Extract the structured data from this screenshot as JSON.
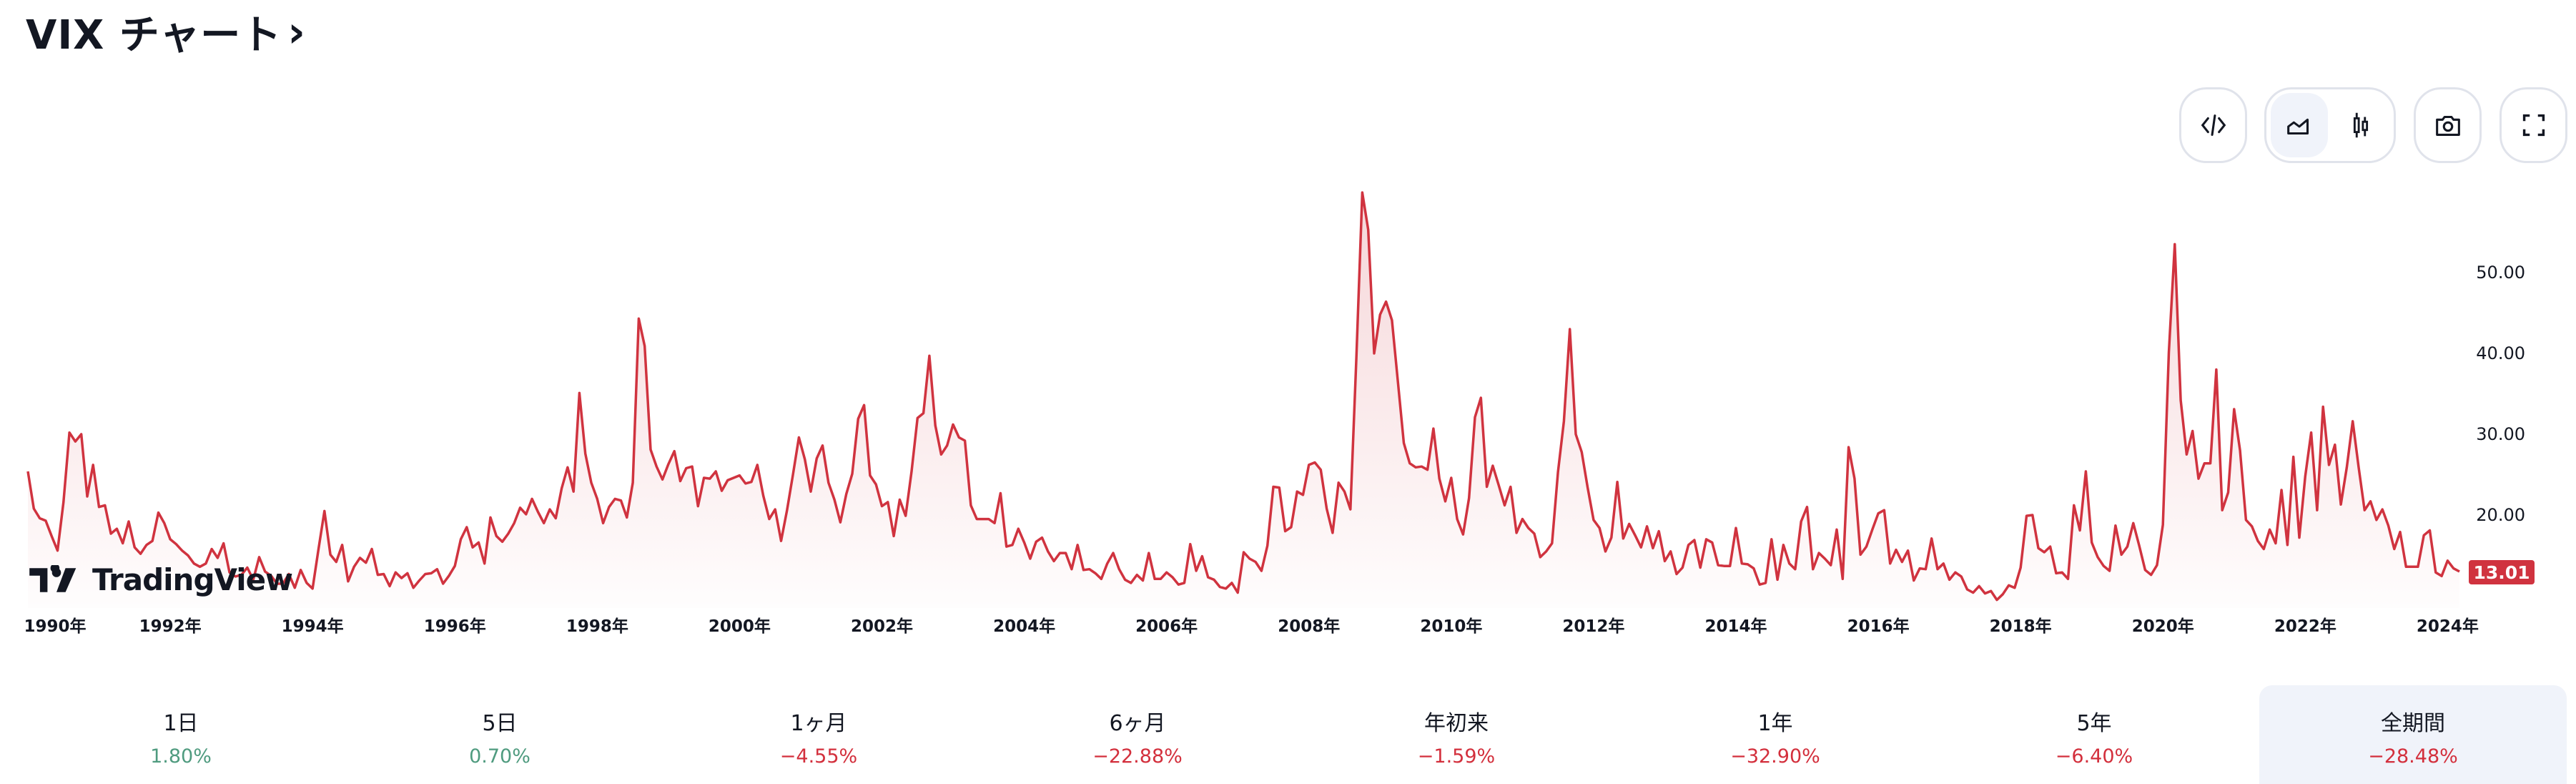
{
  "header": {
    "title": "VIX チャート",
    "chevron": "›"
  },
  "toolbar": {
    "embed_icon": "code-icon",
    "chart_types": [
      {
        "icon": "area-chart-icon",
        "selected": true
      },
      {
        "icon": "candlestick-icon",
        "selected": false
      }
    ],
    "snapshot_icon": "camera-icon",
    "fullscreen_icon": "fullscreen-icon"
  },
  "branding": {
    "logo_text": "TradingView"
  },
  "colors": {
    "line": "#d0333f",
    "positive": "#4f9b7f",
    "negative": "#d32f3c",
    "selected_bg": "#f0f3fa"
  },
  "chart_data": {
    "type": "area",
    "frequency": "monthly",
    "series": [
      {
        "data": [
          {
            "year": 1990,
            "values": [
              25.4,
              20.8,
              19.6,
              19.3,
              17.4,
              15.6,
              21.6,
              30.2,
              29.1,
              30.0,
              22.3,
              26.2
            ]
          },
          {
            "year": 1991,
            "values": [
              21.0,
              21.2,
              17.7,
              18.3,
              16.5,
              19.2,
              16.0,
              15.2,
              16.3,
              16.8,
              20.3,
              19.0
            ]
          },
          {
            "year": 1992,
            "values": [
              17.0,
              16.4,
              15.6,
              15.0,
              14.0,
              13.6,
              14.0,
              15.8,
              14.7,
              16.5,
              12.9,
              12.4
            ]
          },
          {
            "year": 1993,
            "values": [
              12.6,
              13.5,
              12.0,
              14.8,
              13.0,
              12.5,
              11.5,
              11.5,
              12.7,
              11.0,
              13.2,
              11.6
            ]
          },
          {
            "year": 1994,
            "values": [
              10.9,
              15.8,
              20.5,
              15.1,
              14.2,
              16.3,
              11.8,
              13.6,
              14.7,
              14.1,
              15.8,
              12.6
            ]
          },
          {
            "year": 1995,
            "values": [
              12.7,
              11.2,
              12.9,
              12.2,
              12.8,
              11.0,
              11.9,
              12.7,
              12.8,
              13.3,
              11.5,
              12.5
            ]
          },
          {
            "year": 1996,
            "values": [
              13.7,
              17.0,
              18.5,
              16.0,
              16.6,
              14.0,
              19.7,
              17.4,
              16.7,
              17.7,
              19.0,
              20.9
            ]
          },
          {
            "year": 1997,
            "values": [
              20.1,
              22.0,
              20.4,
              19.0,
              20.7,
              19.6,
              23.3,
              25.9,
              22.9,
              35.1,
              27.6,
              24.0
            ]
          },
          {
            "year": 1998,
            "values": [
              22.0,
              19.0,
              21.0,
              22.0,
              21.8,
              19.7,
              24.0,
              44.3,
              40.9,
              28.1,
              26.0,
              24.4
            ]
          },
          {
            "year": 1999,
            "values": [
              26.3,
              27.9,
              24.2,
              25.8,
              26.0,
              21.1,
              24.6,
              24.5,
              25.4,
              23.0,
              24.3,
              24.6
            ]
          },
          {
            "year": 2000,
            "values": [
              24.9,
              23.9,
              24.1,
              26.2,
              22.4,
              19.5,
              20.7,
              16.8,
              20.6,
              25.0,
              29.6,
              26.9
            ]
          },
          {
            "year": 2001,
            "values": [
              22.9,
              27.0,
              28.6,
              24.0,
              21.9,
              19.1,
              22.6,
              25.1,
              31.9,
              33.6,
              24.9,
              23.8
            ]
          },
          {
            "year": 2002,
            "values": [
              21.1,
              21.6,
              17.4,
              21.9,
              19.9,
              25.4,
              32.0,
              32.6,
              39.7,
              31.1,
              27.5,
              28.6
            ]
          },
          {
            "year": 2003,
            "values": [
              31.2,
              29.6,
              29.2,
              21.2,
              19.5,
              19.5,
              19.5,
              19.0,
              22.7,
              16.1,
              16.3,
              18.3
            ]
          },
          {
            "year": 2004,
            "values": [
              16.6,
              14.6,
              16.7,
              17.2,
              15.5,
              14.3,
              15.3,
              15.3,
              13.3,
              16.3,
              13.2,
              13.3
            ]
          },
          {
            "year": 2005,
            "values": [
              12.8,
              12.1,
              14.0,
              15.3,
              13.3,
              12.0,
              11.6,
              12.6,
              11.9,
              15.3,
              12.1,
              12.1
            ]
          },
          {
            "year": 2006,
            "values": [
              12.9,
              12.3,
              11.4,
              11.6,
              16.4,
              13.1,
              14.9,
              12.3,
              12.0,
              11.1,
              10.9,
              11.6
            ]
          },
          {
            "year": 2007,
            "values": [
              10.4,
              15.4,
              14.6,
              14.2,
              13.1,
              16.2,
              23.5,
              23.4,
              18.0,
              18.5,
              22.9,
              22.5
            ]
          },
          {
            "year": 2008,
            "values": [
              26.2,
              26.5,
              25.6,
              20.8,
              17.8,
              24.0,
              22.9,
              20.7,
              39.4,
              59.9,
              55.3,
              40.0
            ]
          },
          {
            "year": 2009,
            "values": [
              44.8,
              46.4,
              44.1,
              36.5,
              28.9,
              26.4,
              25.9,
              26.0,
              25.6,
              30.7,
              24.5,
              21.7
            ]
          },
          {
            "year": 2010,
            "values": [
              24.6,
              19.5,
              17.6,
              22.1,
              32.1,
              34.5,
              23.5,
              26.1,
              23.7,
              21.2,
              23.5,
              17.8
            ]
          },
          {
            "year": 2011,
            "values": [
              19.5,
              18.4,
              17.7,
              14.8,
              15.5,
              16.5,
              25.3,
              31.6,
              43.0,
              30.0,
              27.8,
              23.4
            ]
          },
          {
            "year": 2012,
            "values": [
              19.4,
              18.4,
              15.5,
              17.2,
              24.1,
              17.1,
              18.9,
              17.5,
              16.0,
              18.6,
              15.9,
              18.0
            ]
          },
          {
            "year": 2013,
            "values": [
              14.3,
              15.5,
              12.7,
              13.5,
              16.3,
              16.9,
              13.5,
              17.0,
              16.6,
              13.8,
              13.7,
              13.7
            ]
          },
          {
            "year": 2014,
            "values": [
              18.4,
              14.0,
              13.9,
              13.4,
              11.4,
              11.6,
              17.0,
              12.0,
              16.3,
              14.0,
              13.3,
              19.2
            ]
          },
          {
            "year": 2015,
            "values": [
              21.0,
              13.3,
              15.3,
              14.6,
              13.8,
              18.2,
              12.1,
              28.4,
              24.5,
              15.1,
              16.1,
              18.2
            ]
          },
          {
            "year": 2016,
            "values": [
              20.2,
              20.6,
              14.0,
              15.7,
              14.2,
              15.6,
              11.9,
              13.4,
              13.3,
              17.1,
              13.3,
              14.0
            ]
          },
          {
            "year": 2017,
            "values": [
              12.0,
              12.9,
              12.4,
              10.8,
              10.4,
              11.2,
              10.3,
              10.6,
              9.5,
              10.2,
              11.3,
              11.0
            ]
          },
          {
            "year": 2018,
            "values": [
              13.5,
              19.9,
              20.0,
              15.9,
              15.4,
              16.1,
              12.8,
              12.9,
              12.1,
              21.2,
              18.1,
              25.4
            ]
          },
          {
            "year": 2019,
            "values": [
              16.6,
              14.8,
              13.7,
              13.1,
              18.7,
              15.1,
              16.1,
              19.0,
              16.2,
              13.2,
              12.6,
              13.8
            ]
          },
          {
            "year": 2020,
            "values": [
              18.8,
              40.1,
              53.5,
              34.2,
              27.5,
              30.4,
              24.5,
              26.4,
              26.4,
              38.0,
              20.6,
              22.8
            ]
          },
          {
            "year": 2021,
            "values": [
              33.1,
              28.0,
              19.4,
              18.6,
              16.8,
              15.8,
              18.2,
              16.5,
              23.1,
              16.3,
              27.2,
              17.2
            ]
          },
          {
            "year": 2022,
            "values": [
              24.8,
              30.2,
              20.6,
              33.4,
              26.2,
              28.7,
              21.3,
              25.9,
              31.6,
              25.9,
              20.6,
              21.7
            ]
          },
          {
            "year": 2023,
            "values": [
              19.4,
              20.7,
              18.7,
              15.8,
              17.9,
              13.6,
              13.6,
              13.6,
              17.5,
              18.1,
              12.9,
              12.45
            ]
          },
          {
            "year": 2024,
            "values": [
              14.35,
              13.4,
              13.01
            ]
          }
        ]
      }
    ],
    "last_value": "13.01",
    "y_ticks": [
      "20.00",
      "30.00",
      "40.00",
      "50.00"
    ],
    "y_tick_values": [
      20,
      30,
      40,
      50
    ],
    "ylim": [
      8.5,
      61.5
    ],
    "x_ticks": [
      "1990年",
      "1992年",
      "1994年",
      "1996年",
      "1998年",
      "2000年",
      "2002年",
      "2004年",
      "2006年",
      "2008年",
      "2010年",
      "2012年",
      "2014年",
      "2016年",
      "2018年",
      "2020年",
      "2022年",
      "2024年"
    ],
    "x_tick_years": [
      1990,
      1992,
      1994,
      1996,
      1998,
      2000,
      2002,
      2004,
      2006,
      2008,
      2010,
      2012,
      2014,
      2016,
      2018,
      2020,
      2022,
      2024
    ],
    "grid": false,
    "y_axis_position": "right"
  },
  "periods": [
    {
      "label": "1日",
      "value": "1.80%",
      "trend": "positive",
      "selected": false
    },
    {
      "label": "5日",
      "value": "0.70%",
      "trend": "positive",
      "selected": false
    },
    {
      "label": "1ヶ月",
      "value": "−4.55%",
      "trend": "negative",
      "selected": false
    },
    {
      "label": "6ヶ月",
      "value": "−22.88%",
      "trend": "negative",
      "selected": false
    },
    {
      "label": "年初来",
      "value": "−1.59%",
      "trend": "negative",
      "selected": false
    },
    {
      "label": "1年",
      "value": "−32.90%",
      "trend": "negative",
      "selected": false
    },
    {
      "label": "5年",
      "value": "−6.40%",
      "trend": "negative",
      "selected": false
    },
    {
      "label": "全期間",
      "value": "−28.48%",
      "trend": "negative",
      "selected": true
    }
  ]
}
